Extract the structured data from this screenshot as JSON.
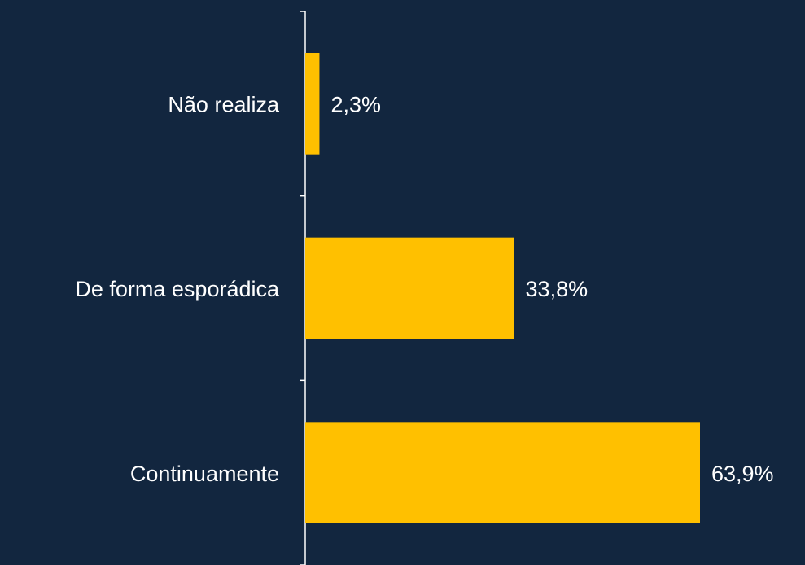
{
  "chart_data": {
    "type": "bar",
    "orientation": "horizontal",
    "categories": [
      "Não realiza",
      "De forma esporádica",
      "Continuamente"
    ],
    "values": [
      2.3,
      33.8,
      63.9
    ],
    "value_labels": [
      "2,3%",
      "33,8%",
      "63,9%"
    ],
    "color": "#ffc000"
  }
}
